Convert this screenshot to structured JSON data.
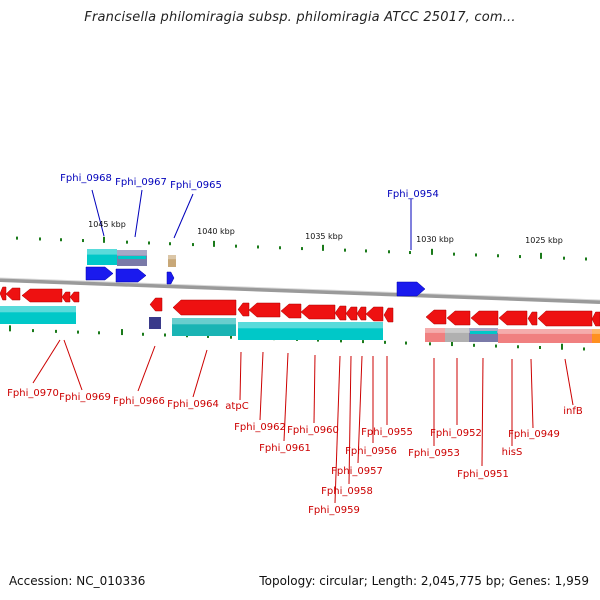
{
  "title": "Francisella philomiragia subsp. philomiragia ATCC 25017, com...",
  "footer": {
    "accession_label": "Accession:",
    "accession": "NC_010336",
    "topology": "Topology: circular;",
    "length": "Length: 2,045,775 bp;",
    "genes": "Genes: 1,959"
  },
  "colors": {
    "forward_gene": "#ee1111",
    "cds_band": "#00c8c8",
    "rna_gene": "#1a1aee",
    "pseudo": "#c8a878",
    "operon_pink": "#f08080",
    "backbone": "#8a8a8a",
    "label_red": "#cc0000",
    "label_blue": "#0000bb",
    "tick_green": "#1a7a1a"
  },
  "scale_labels": [
    "1045 kbp",
    "1040 kbp",
    "1035 kbp",
    "1030 kbp",
    "1025 kbp"
  ],
  "top_labels": [
    "Fphi_0968",
    "Fphi_0967",
    "Fphi_0965",
    "Fphi_0954"
  ],
  "bottom_labels": [
    "Fphi_0970",
    "Fphi_0969",
    "Fphi_0966",
    "Fphi_0964",
    "atpC",
    "Fphi_0962",
    "Fphi_0961",
    "Fphi_0960",
    "Fphi_0955",
    "Fphi_0956",
    "Fphi_0957",
    "Fphi_0958",
    "Fphi_0959",
    "Fphi_0953",
    "Fphi_0952",
    "Fphi_0951",
    "hisS",
    "Fphi_0949",
    "infB"
  ]
}
